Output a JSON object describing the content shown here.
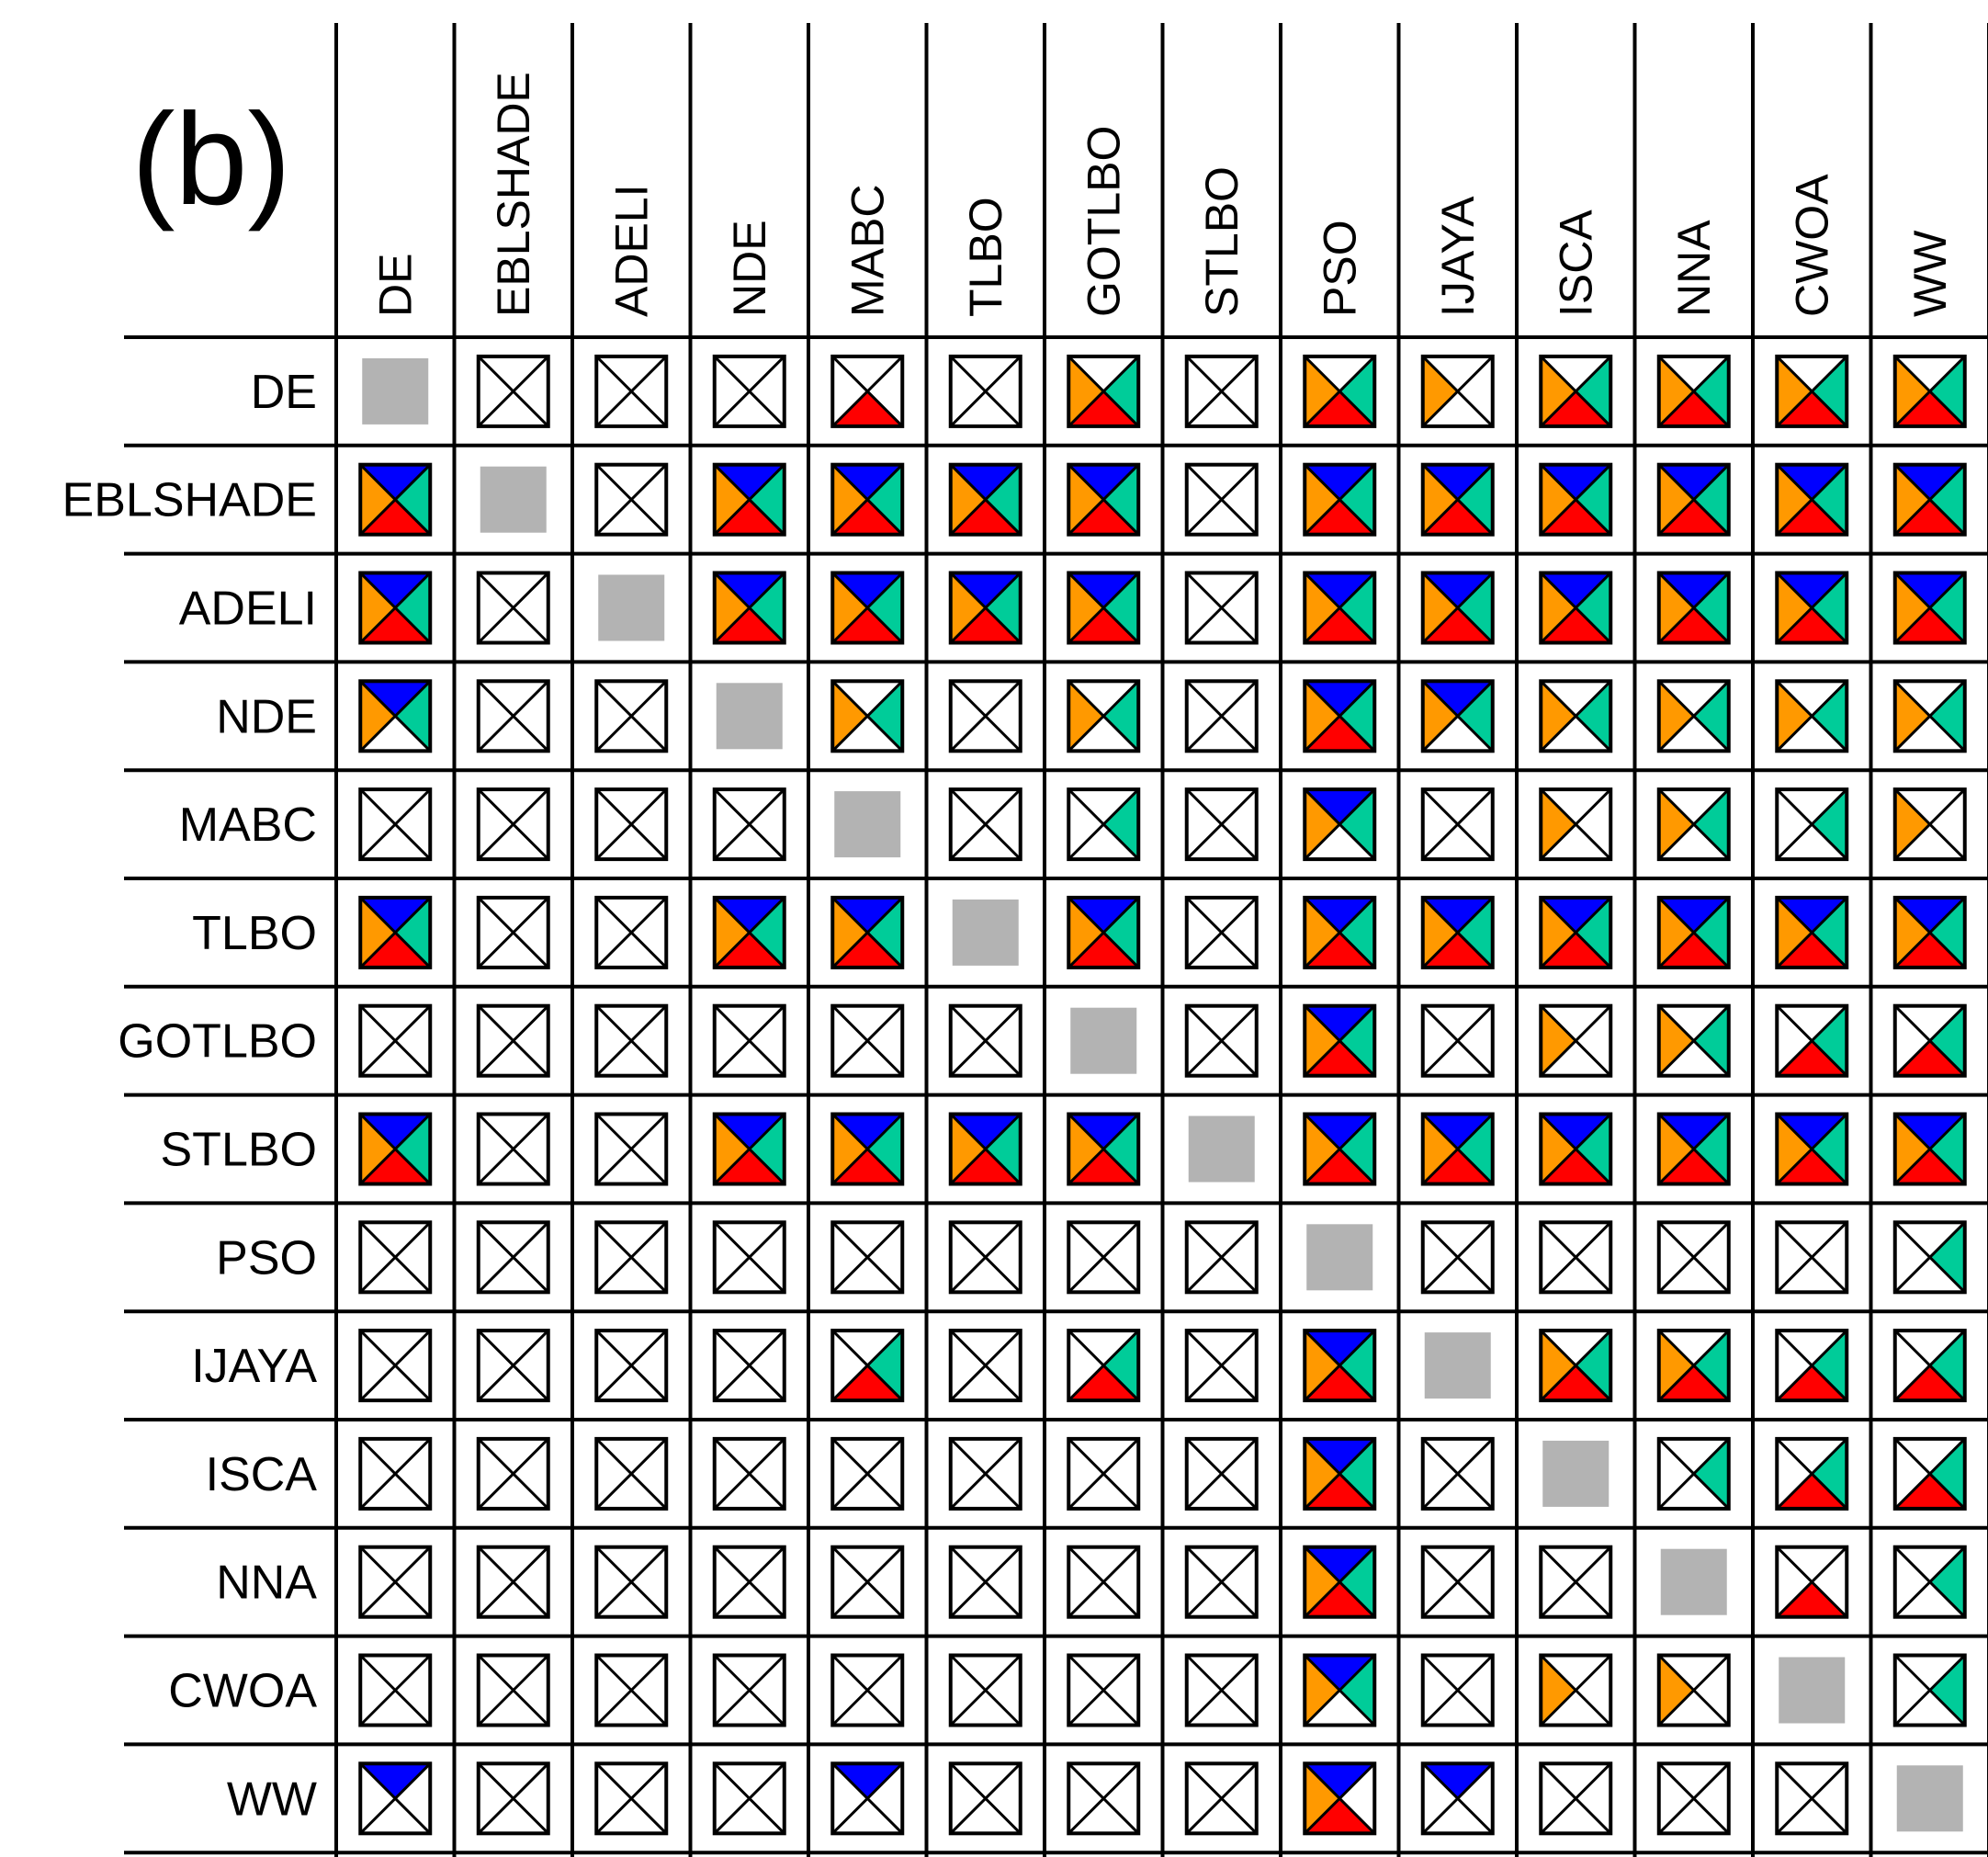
{
  "panel_label": "(b)",
  "algorithms": [
    "DE",
    "EBLSHADE",
    "ADELI",
    "NDE",
    "MABC",
    "TLBO",
    "GOTLBO",
    "STLBO",
    "PSO",
    "IJAYA",
    "ISCA",
    "NNA",
    "CWOA",
    "WW"
  ],
  "colors": {
    "top": "#0000ff",
    "right": "#00cc99",
    "bottom": "#ff0000",
    "left": "#ff9900",
    "diagonal": "#b3b3b3",
    "empty": "#ffffff",
    "line": "#000000"
  },
  "chart_data": {
    "type": "table",
    "title": "(b)",
    "encoding": "each cell is a square split into four triangles by its diagonals; sides in order top,right,bottom,left; 1 = filled with that side's color, 0 = white; diagonal cells are a gray square",
    "sides": [
      "top",
      "right",
      "bottom",
      "left"
    ],
    "rows": [
      "DE",
      "EBLSHADE",
      "ADELI",
      "NDE",
      "MABC",
      "TLBO",
      "GOTLBO",
      "STLBO",
      "PSO",
      "IJAYA",
      "ISCA",
      "NNA",
      "CWOA",
      "WW"
    ],
    "columns": [
      "DE",
      "EBLSHADE",
      "ADELI",
      "NDE",
      "MABC",
      "TLBO",
      "GOTLBO",
      "STLBO",
      "PSO",
      "IJAYA",
      "ISCA",
      "NNA",
      "CWOA",
      "WW"
    ],
    "cells": [
      [
        "diag",
        "0000",
        "0000",
        "0000",
        "0010",
        "0000",
        "0111",
        "0000",
        "0111",
        "0001",
        "0111",
        "0111",
        "0111",
        "0111"
      ],
      [
        "1111",
        "diag",
        "0000",
        "1111",
        "1111",
        "1111",
        "1111",
        "0000",
        "1111",
        "1111",
        "1111",
        "1111",
        "1111",
        "1111"
      ],
      [
        "1111",
        "0000",
        "diag",
        "1111",
        "1111",
        "1111",
        "1111",
        "0000",
        "1111",
        "1111",
        "1111",
        "1111",
        "1111",
        "1111"
      ],
      [
        "1101",
        "0000",
        "0000",
        "diag",
        "0101",
        "0000",
        "0101",
        "0000",
        "1111",
        "1101",
        "0101",
        "0101",
        "0101",
        "0101"
      ],
      [
        "0000",
        "0000",
        "0000",
        "0000",
        "diag",
        "0000",
        "0100",
        "0000",
        "1101",
        "0000",
        "0001",
        "0101",
        "0100",
        "0001"
      ],
      [
        "1111",
        "0000",
        "0000",
        "1111",
        "1111",
        "diag",
        "1111",
        "0000",
        "1111",
        "1111",
        "1111",
        "1111",
        "1111",
        "1111"
      ],
      [
        "0000",
        "0000",
        "0000",
        "0000",
        "0000",
        "0000",
        "diag",
        "0000",
        "1111",
        "0000",
        "0001",
        "0101",
        "0110",
        "0110"
      ],
      [
        "1111",
        "0000",
        "0000",
        "1111",
        "1111",
        "1111",
        "1111",
        "diag",
        "1111",
        "1111",
        "1111",
        "1111",
        "1111",
        "1111"
      ],
      [
        "0000",
        "0000",
        "0000",
        "0000",
        "0000",
        "0000",
        "0000",
        "0000",
        "diag",
        "0000",
        "0000",
        "0000",
        "0000",
        "0100"
      ],
      [
        "0000",
        "0000",
        "0000",
        "0000",
        "0110",
        "0000",
        "0110",
        "0000",
        "1111",
        "diag",
        "0111",
        "0111",
        "0110",
        "0110"
      ],
      [
        "0000",
        "0000",
        "0000",
        "0000",
        "0000",
        "0000",
        "0000",
        "0000",
        "1111",
        "0000",
        "diag",
        "0100",
        "0110",
        "0110"
      ],
      [
        "0000",
        "0000",
        "0000",
        "0000",
        "0000",
        "0000",
        "0000",
        "0000",
        "1111",
        "0000",
        "0000",
        "diag",
        "0010",
        "0100"
      ],
      [
        "0000",
        "0000",
        "0000",
        "0000",
        "0000",
        "0000",
        "0000",
        "0000",
        "1101",
        "0000",
        "0001",
        "0001",
        "diag",
        "0100"
      ],
      [
        "1000",
        "0000",
        "0000",
        "0000",
        "1000",
        "0000",
        "0000",
        "0000",
        "1011",
        "1000",
        "0000",
        "0000",
        "0000",
        "diag"
      ]
    ]
  }
}
